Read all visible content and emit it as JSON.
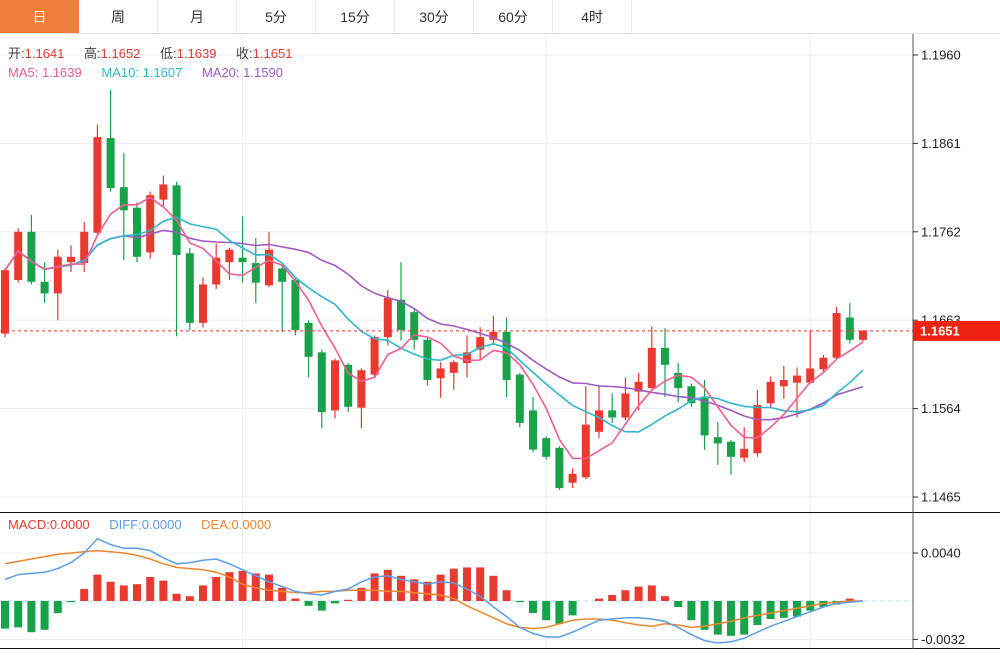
{
  "tabs": [
    {
      "label": "日",
      "active": true
    },
    {
      "label": "周",
      "active": false
    },
    {
      "label": "月",
      "active": false
    },
    {
      "label": "5分",
      "active": false
    },
    {
      "label": "15分",
      "active": false
    },
    {
      "label": "30分",
      "active": false
    },
    {
      "label": "60分",
      "active": false
    },
    {
      "label": "4时",
      "active": false
    }
  ],
  "legend": {
    "open_label": "开:",
    "open_value": "1.1641",
    "high_label": "高:",
    "high_value": "1.1652",
    "low_label": "低:",
    "low_value": "1.1639",
    "close_label": "收:",
    "close_value": "1.1651",
    "ma5_label": "MA5:",
    "ma5_value": "1.1639",
    "ma10_label": "MA10:",
    "ma10_value": "1.1607",
    "ma20_label": "MA20:",
    "ma20_value": "1.1590"
  },
  "macd_legend": {
    "macd_label": "MACD:",
    "macd_value": "0.0000",
    "diff_label": "DIFF:",
    "diff_value": "0.0000",
    "dea_label": "DEA:",
    "dea_value": "0.0000"
  },
  "price_badge": "1.1651",
  "colors": {
    "up": "#e83a2e",
    "down": "#18a34b",
    "ma5": "#ef5d92",
    "ma10": "#2fb6cf",
    "ma20": "#a159c5",
    "diff": "#5b9de8",
    "dea": "#f0862d",
    "grid": "#e9eff6",
    "axis": "#555555",
    "axis_text": "#222222",
    "last_price_line": "#e83a2e",
    "badge_bg": "#ee2411",
    "badge_text": "#ffffff",
    "zero_line": "#a6d8ee",
    "tab_active_bg": "#ef7f3d",
    "panel_divider": "#111111"
  },
  "chart_data": {
    "type": "candlestick+macd",
    "price_ticks": [
      1.196,
      1.1861,
      1.1762,
      1.1663,
      1.1564,
      1.1465
    ],
    "last_price": 1.1651,
    "vgrid_indices": [
      18,
      41,
      61
    ],
    "candles": {
      "open": [
        1.1648,
        1.1708,
        1.1762,
        1.1706,
        1.1693,
        1.1728,
        1.1727,
        1.1761,
        1.1867,
        1.1812,
        1.1789,
        1.1739,
        1.1798,
        1.1814,
        1.1738,
        1.166,
        1.1703,
        1.1728,
        1.1733,
        1.1727,
        1.1702,
        1.1721,
        1.1708,
        1.166,
        1.1627,
        1.1562,
        1.1613,
        1.1565,
        1.1602,
        1.1644,
        1.1686,
        1.1672,
        1.1641,
        1.1598,
        1.1604,
        1.1615,
        1.163,
        1.1641,
        1.165,
        1.1602,
        1.1562,
        1.1531,
        1.152,
        1.1481,
        1.1487,
        1.1538,
        1.1562,
        1.1554,
        1.1583,
        1.1587,
        1.1632,
        1.1604,
        1.1589,
        1.1576,
        1.1532,
        1.1527,
        1.1509,
        1.1514,
        1.157,
        1.1589,
        1.1593,
        1.1593,
        1.1608,
        1.1621,
        1.1666,
        1.1641
      ],
      "high": [
        1.1721,
        1.1766,
        1.1781,
        1.1728,
        1.1742,
        1.1747,
        1.1773,
        1.1882,
        1.1921,
        1.185,
        1.1795,
        1.1807,
        1.1825,
        1.1818,
        1.1744,
        1.1711,
        1.1749,
        1.1744,
        1.1779,
        1.1755,
        1.1762,
        1.1725,
        1.171,
        1.1663,
        1.163,
        1.162,
        1.1615,
        1.1609,
        1.1646,
        1.1697,
        1.1728,
        1.1675,
        1.1643,
        1.1616,
        1.1618,
        1.1646,
        1.1655,
        1.1668,
        1.1666,
        1.1604,
        1.1577,
        1.1533,
        1.1522,
        1.1497,
        1.1589,
        1.159,
        1.1581,
        1.1599,
        1.1604,
        1.1656,
        1.1654,
        1.1615,
        1.1592,
        1.1596,
        1.1549,
        1.1529,
        1.1543,
        1.1585,
        1.16,
        1.1612,
        1.161,
        1.1652,
        1.1624,
        1.1678,
        1.1682,
        1.1652
      ],
      "low": [
        1.1644,
        1.1705,
        1.1703,
        1.1682,
        1.1663,
        1.1717,
        1.1717,
        1.1758,
        1.1807,
        1.173,
        1.1728,
        1.1732,
        1.1791,
        1.1645,
        1.1652,
        1.1655,
        1.1698,
        1.1708,
        1.1705,
        1.1682,
        1.17,
        1.165,
        1.1646,
        1.1599,
        1.1542,
        1.1553,
        1.156,
        1.1542,
        1.1598,
        1.1635,
        1.164,
        1.163,
        1.159,
        1.1576,
        1.1585,
        1.1599,
        1.1618,
        1.1635,
        1.1577,
        1.1543,
        1.1515,
        1.1507,
        1.1473,
        1.1475,
        1.1485,
        1.1531,
        1.1548,
        1.1551,
        1.1562,
        1.1586,
        1.1577,
        1.1571,
        1.1566,
        1.1518,
        1.1501,
        1.149,
        1.1504,
        1.151,
        1.1565,
        1.1575,
        1.1554,
        1.1592,
        1.1605,
        1.162,
        1.1637,
        1.1639
      ],
      "close": [
        1.1719,
        1.1762,
        1.1706,
        1.1693,
        1.1734,
        1.1734,
        1.1762,
        1.1868,
        1.1811,
        1.1786,
        1.1734,
        1.1803,
        1.1815,
        1.1736,
        1.166,
        1.1703,
        1.1733,
        1.1742,
        1.1728,
        1.1705,
        1.1742,
        1.1706,
        1.1652,
        1.1622,
        1.156,
        1.1618,
        1.1566,
        1.1607,
        1.1644,
        1.1688,
        1.1652,
        1.1641,
        1.1596,
        1.1609,
        1.1616,
        1.1627,
        1.1644,
        1.165,
        1.1596,
        1.1548,
        1.1518,
        1.151,
        1.1475,
        1.1491,
        1.1546,
        1.1562,
        1.1554,
        1.1581,
        1.1594,
        1.1632,
        1.1613,
        1.1587,
        1.157,
        1.1534,
        1.1525,
        1.151,
        1.1519,
        1.1568,
        1.1594,
        1.1596,
        1.1601,
        1.1609,
        1.1621,
        1.1671,
        1.1641,
        1.1651
      ]
    },
    "ma_windows": [
      5,
      10,
      20
    ],
    "ma_last": {
      "ma5": 1.1639,
      "ma10": 1.1607,
      "ma20": 1.159
    },
    "macd": {
      "ticks": [
        0.004,
        -0.0032
      ],
      "last": {
        "macd": 0.0,
        "diff": 0.0,
        "dea": 0.0
      },
      "bars": [
        -0.0023,
        -0.0022,
        -0.0026,
        -0.0024,
        -0.001,
        -0.0001,
        0.001,
        0.0022,
        0.0016,
        0.0013,
        0.0014,
        0.002,
        0.0017,
        0.0006,
        0.0004,
        0.0013,
        0.002,
        0.0024,
        0.0025,
        0.0023,
        0.0022,
        0.0011,
        0.0002,
        -0.0004,
        -0.0008,
        -0.0002,
        0.0001,
        0.0011,
        0.0023,
        0.0026,
        0.0021,
        0.0018,
        0.0016,
        0.0022,
        0.0027,
        0.0028,
        0.0028,
        0.0021,
        0.0009,
        -0.0001,
        -0.001,
        -0.0016,
        -0.0019,
        -0.0012,
        0.0,
        0.0002,
        0.0005,
        0.0009,
        0.0012,
        0.0013,
        0.0004,
        -0.0005,
        -0.0016,
        -0.0024,
        -0.0028,
        -0.0029,
        -0.0028,
        -0.002,
        -0.0015,
        -0.0014,
        -0.0013,
        -0.0008,
        -0.0005,
        -0.0003,
        0.0002,
        0.0
      ],
      "diff": [
        0.0018,
        0.0022,
        0.0023,
        0.0024,
        0.0027,
        0.0032,
        0.004,
        0.0052,
        0.0047,
        0.0044,
        0.0044,
        0.0042,
        0.0036,
        0.0031,
        0.0032,
        0.0034,
        0.0035,
        0.0031,
        0.0026,
        0.0021,
        0.0016,
        0.0012,
        0.0008,
        0.0006,
        0.0005,
        0.0008,
        0.001,
        0.0016,
        0.002,
        0.0021,
        0.0018,
        0.0016,
        0.0014,
        0.0016,
        0.0015,
        0.001,
        0.0004,
        -0.0005,
        -0.0013,
        -0.0022,
        -0.0027,
        -0.003,
        -0.003,
        -0.0026,
        -0.0021,
        -0.0016,
        -0.0015,
        -0.0014,
        -0.0014,
        -0.0015,
        -0.0017,
        -0.0022,
        -0.0028,
        -0.0033,
        -0.0035,
        -0.0034,
        -0.0031,
        -0.0026,
        -0.0021,
        -0.0017,
        -0.0013,
        -0.0009,
        -0.0005,
        -0.0002,
        -0.0001,
        0.0
      ],
      "dea": [
        0.0031,
        0.0033,
        0.0035,
        0.0037,
        0.0039,
        0.004,
        0.0041,
        0.0042,
        0.0041,
        0.004,
        0.0038,
        0.0035,
        0.0031,
        0.0028,
        0.0027,
        0.0026,
        0.0024,
        0.002,
        0.0014,
        0.0011,
        0.0009,
        0.0008,
        0.0007,
        0.0007,
        0.0008,
        0.0008,
        0.0009,
        0.0009,
        0.0009,
        0.0008,
        0.0008,
        0.0007,
        0.0006,
        0.0005,
        0.0002,
        -0.0004,
        -0.0009,
        -0.0014,
        -0.0019,
        -0.0022,
        -0.0023,
        -0.0022,
        -0.0019,
        -0.0016,
        -0.0015,
        -0.0015,
        -0.0016,
        -0.0018,
        -0.002,
        -0.0021,
        -0.0019,
        -0.002,
        -0.0022,
        -0.0021,
        -0.0019,
        -0.0017,
        -0.0014,
        -0.0012,
        -0.001,
        -0.0008,
        -0.0006,
        -0.0004,
        -0.0002,
        -0.0001,
        0.0,
        0.0
      ]
    }
  }
}
